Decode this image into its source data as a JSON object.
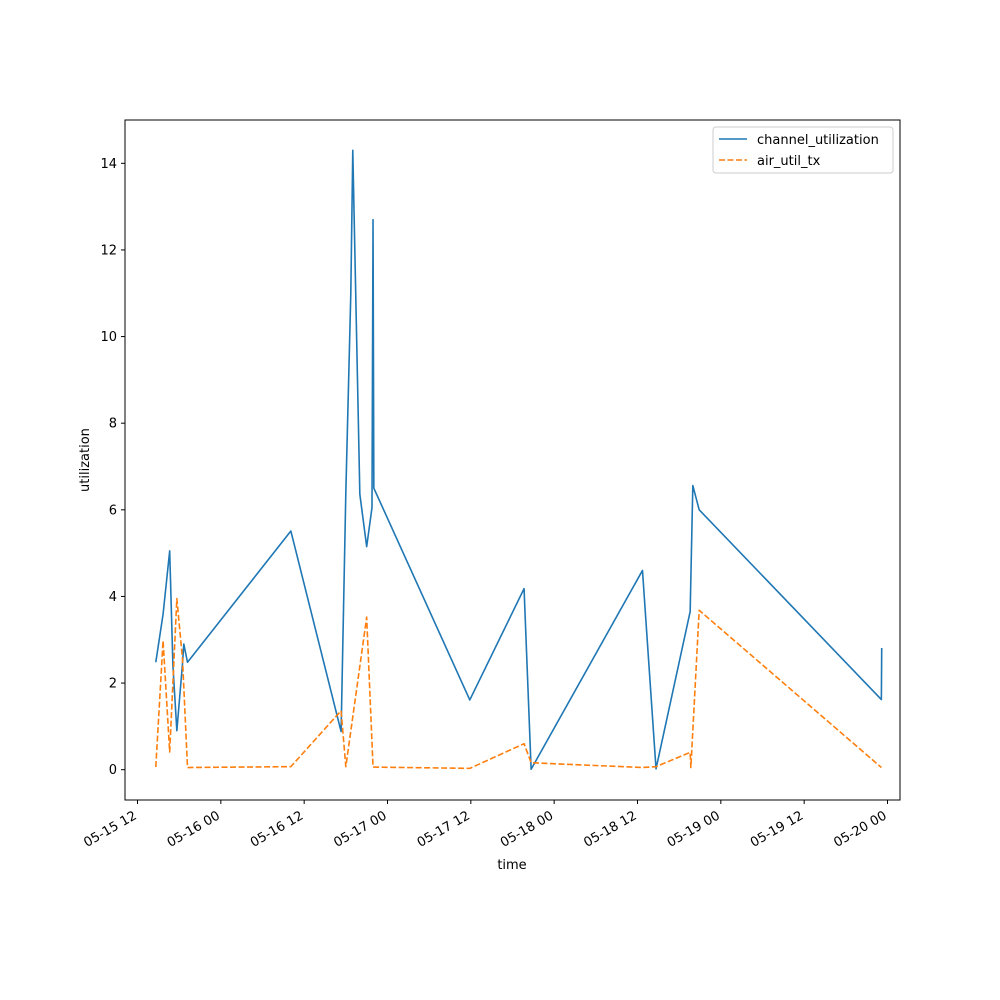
{
  "chart_data": {
    "type": "line",
    "title": "",
    "xlabel": "time",
    "ylabel": "utilization",
    "xlim": [
      "2024-05-15 10:12",
      "2024-05-20 01:48"
    ],
    "ylim": [
      -0.7,
      15
    ],
    "x_ticks": [
      {
        "value": "2024-05-15 12:00",
        "label": "05-15 12"
      },
      {
        "value": "2024-05-16 00:00",
        "label": "05-16 00"
      },
      {
        "value": "2024-05-16 12:00",
        "label": "05-16 12"
      },
      {
        "value": "2024-05-17 00:00",
        "label": "05-17 00"
      },
      {
        "value": "2024-05-17 12:00",
        "label": "05-17 12"
      },
      {
        "value": "2024-05-18 00:00",
        "label": "05-18 00"
      },
      {
        "value": "2024-05-18 12:00",
        "label": "05-18 12"
      },
      {
        "value": "2024-05-19 00:00",
        "label": "05-19 00"
      },
      {
        "value": "2024-05-19 12:00",
        "label": "05-19 12"
      },
      {
        "value": "2024-05-20 00:00",
        "label": "05-20 00"
      }
    ],
    "y_ticks": [
      0,
      2,
      4,
      6,
      8,
      10,
      12,
      14
    ],
    "legend_position": "top-right",
    "grid": false,
    "series": [
      {
        "name": "channel_utilization",
        "color": "#1f77b4",
        "dash": "solid",
        "points": [
          [
            "2024-05-15 14:38",
            2.48
          ],
          [
            "2024-05-15 15:41",
            3.59
          ],
          [
            "2024-05-15 16:38",
            5.05
          ],
          [
            "2024-05-15 17:06",
            2.4
          ],
          [
            "2024-05-15 17:40",
            0.9
          ],
          [
            "2024-05-15 18:29",
            2.45
          ],
          [
            "2024-05-15 18:40",
            2.9
          ],
          [
            "2024-05-15 19:12",
            2.48
          ],
          [
            "2024-05-16 10:05",
            5.51
          ],
          [
            "2024-05-16 17:19",
            0.88
          ],
          [
            "2024-05-16 18:00",
            6.4
          ],
          [
            "2024-05-16 18:43",
            11.0
          ],
          [
            "2024-05-16 19:00",
            14.3
          ],
          [
            "2024-05-16 20:01",
            6.36
          ],
          [
            "2024-05-16 21:00",
            5.15
          ],
          [
            "2024-05-16 21:46",
            6.05
          ],
          [
            "2024-05-16 21:55",
            12.7
          ],
          [
            "2024-05-16 22:02",
            6.5
          ],
          [
            "2024-05-17 11:51",
            1.61
          ],
          [
            "2024-05-17 19:40",
            4.18
          ],
          [
            "2024-05-17 20:41",
            0.01
          ],
          [
            "2024-05-18 12:43",
            4.6
          ],
          [
            "2024-05-18 14:40",
            0.02
          ],
          [
            "2024-05-18 19:35",
            3.65
          ],
          [
            "2024-05-18 19:58",
            6.56
          ],
          [
            "2024-05-18 20:53",
            6.0
          ],
          [
            "2024-05-19 23:07",
            1.62
          ],
          [
            "2024-05-19 23:10",
            2.81
          ]
        ]
      },
      {
        "name": "air_util_tx",
        "color": "#ff7f0e",
        "dash": "dashed",
        "points": [
          [
            "2024-05-15 14:38",
            0.06
          ],
          [
            "2024-05-15 15:41",
            2.98
          ],
          [
            "2024-05-15 16:38",
            0.41
          ],
          [
            "2024-05-15 17:40",
            3.95
          ],
          [
            "2024-05-15 18:29",
            2.55
          ],
          [
            "2024-05-15 19:12",
            0.05
          ],
          [
            "2024-05-16 10:05",
            0.07
          ],
          [
            "2024-05-16 17:19",
            1.36
          ],
          [
            "2024-05-16 18:00",
            0.07
          ],
          [
            "2024-05-16 21:00",
            3.52
          ],
          [
            "2024-05-16 21:55",
            0.06
          ],
          [
            "2024-05-17 11:51",
            0.03
          ],
          [
            "2024-05-17 19:40",
            0.6
          ],
          [
            "2024-05-17 20:41",
            0.16
          ],
          [
            "2024-05-18 12:43",
            0.05
          ],
          [
            "2024-05-18 14:40",
            0.07
          ],
          [
            "2024-05-18 19:35",
            0.4
          ],
          [
            "2024-05-18 19:41",
            0.05
          ],
          [
            "2024-05-18 20:53",
            3.68
          ],
          [
            "2024-05-19 23:07",
            0.05
          ]
        ]
      }
    ]
  }
}
